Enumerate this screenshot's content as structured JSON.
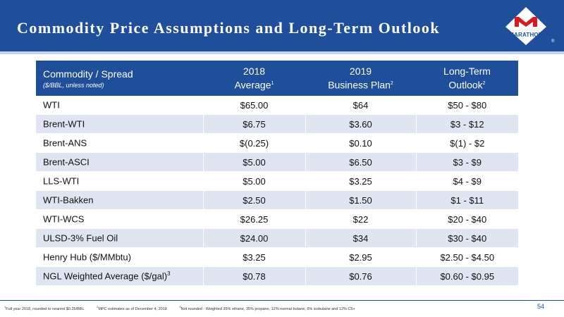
{
  "slide": {
    "title": "Commodity Price Assumptions and Long-Term Outlook",
    "logo_text": "MARATHON",
    "page_number": "54",
    "brand_color": "#1f4e9a",
    "logo_color": "#d71920"
  },
  "table": {
    "header": {
      "col1_title": "Commodity / Spread",
      "col1_sub": "($/BBL, unless noted)",
      "col2_line1": "2018",
      "col2_line2": "Average",
      "col2_sup": "1",
      "col3_line1": "2019",
      "col3_line2": "Business Plan",
      "col3_sup": "2",
      "col4_line1": "Long-Term",
      "col4_line2": "Outlook",
      "col4_sup": "2"
    },
    "rows": [
      {
        "label": "WTI",
        "sup": "",
        "avg2018": "$65.00",
        "plan2019": "$64",
        "outlook": "$50 - $80"
      },
      {
        "label": "Brent-WTI",
        "sup": "",
        "avg2018": "$6.75",
        "plan2019": "$3.60",
        "outlook": "$3 - $12"
      },
      {
        "label": "Brent-ANS",
        "sup": "",
        "avg2018": "$(0.25)",
        "plan2019": "$0.10",
        "outlook": "$(1) - $2"
      },
      {
        "label": "Brent-ASCI",
        "sup": "",
        "avg2018": "$5.00",
        "plan2019": "$6.50",
        "outlook": "$3 - $9"
      },
      {
        "label": "LLS-WTI",
        "sup": "",
        "avg2018": "$5.00",
        "plan2019": "$3.25",
        "outlook": "$4 - $9"
      },
      {
        "label": "WTI-Bakken",
        "sup": "",
        "avg2018": "$2.50",
        "plan2019": "$1.50",
        "outlook": "$1 - $11"
      },
      {
        "label": "WTI-WCS",
        "sup": "",
        "avg2018": "$26.25",
        "plan2019": "$22",
        "outlook": "$20 - $40"
      },
      {
        "label": "ULSD-3% Fuel Oil",
        "sup": "",
        "avg2018": "$24.00",
        "plan2019": "$34",
        "outlook": "$30 - $40"
      },
      {
        "label": "Henry Hub ($/MMbtu)",
        "sup": "",
        "avg2018": "$3.25",
        "plan2019": "$2.95",
        "outlook": "$2.50 - $4.50"
      },
      {
        "label": "NGL Weighted Average ($/gal)",
        "sup": "3",
        "avg2018": "$0.78",
        "plan2019": "$0.76",
        "outlook": "$0.60 - $0.95"
      }
    ]
  },
  "footnotes": {
    "n1_mark": "1",
    "n1_text": "Full year 2018, rounded to nearest $0.25/BBL",
    "n2_mark": "2",
    "n2_text": "MPC estimates as of December 4, 2018",
    "n3_mark": "3",
    "n3_text": "Not rounded - Weighted 35% ethane, 35% propane, 12% normal butane, 6% isobutane and 12% C5+"
  }
}
